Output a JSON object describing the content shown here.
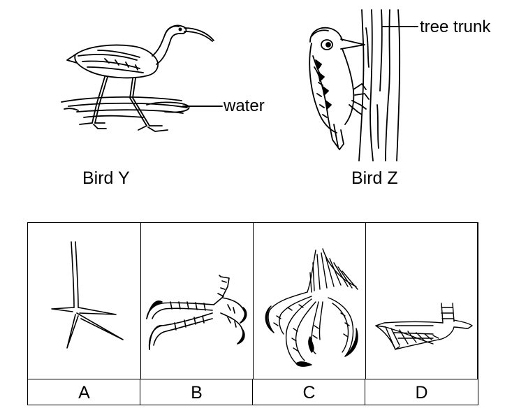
{
  "bird_y": {
    "label": "Bird Y",
    "callout": "water"
  },
  "bird_z": {
    "label": "Bird Z",
    "callout": "tree trunk"
  },
  "feet": [
    {
      "letter": "A"
    },
    {
      "letter": "B"
    },
    {
      "letter": "C"
    },
    {
      "letter": "D"
    }
  ]
}
